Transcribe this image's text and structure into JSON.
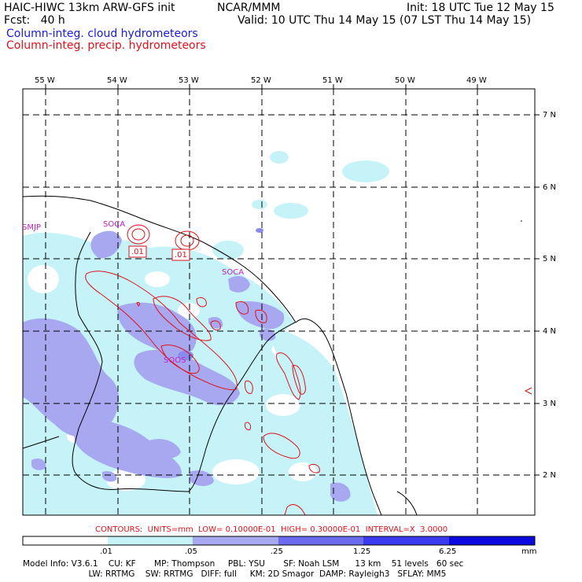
{
  "header": {
    "model": "HAIC-HIWC 13km ARW-GFS init",
    "org": "NCAR/MMM",
    "init": "Init: 18 UTC Tue 12 May 15",
    "fcst": "Fcst:   40 h",
    "valid": "Valid: 10 UTC Thu 14 May 15 (07 LST Thu 14 May 15)",
    "legend_cloud": "Column-integ. cloud hydrometeors",
    "legend_precip": "Column-integ. precip. hydrometeors"
  },
  "map": {
    "lon_labels": [
      "55 W",
      "54 W",
      "53 W",
      "52 W",
      "51 W",
      "50 W",
      "49 W"
    ],
    "lat_labels": [
      "7 N",
      "6 N",
      "5 N",
      "4 N",
      "3 N",
      "2 N"
    ],
    "stations": [
      "SMJP",
      "SOCA",
      "SOCA",
      "SOOS"
    ],
    "contour_labels": [
      ".01",
      ".01"
    ]
  },
  "colorbar": {
    "contours_info": "CONTOURS:  UNITS=mm  LOW= 0.10000E-01  HIGH= 0.30000E-01  INTERVAL=X  3.0000",
    "ticks": [
      ".01",
      ".05",
      ".25",
      "1.25",
      "6.25"
    ],
    "units": "mm",
    "colors": [
      "#ffffff",
      "#c6f3f7",
      "#a8a8f0",
      "#6b6bf0",
      "#3a3af0",
      "#0a0ae0"
    ]
  },
  "footer": {
    "line1": "Model Info: V3.6.1    CU: KF       MP: Thompson     PBL: YSU       SF: Noah LSM      13 km    51 levels   60 sec",
    "line2": "                         LW: RRTMG    SW: RRTMG   DIFF: full     KM: 2D Smagor  DAMP: Rayleigh3   SFLAY: MM5"
  }
}
